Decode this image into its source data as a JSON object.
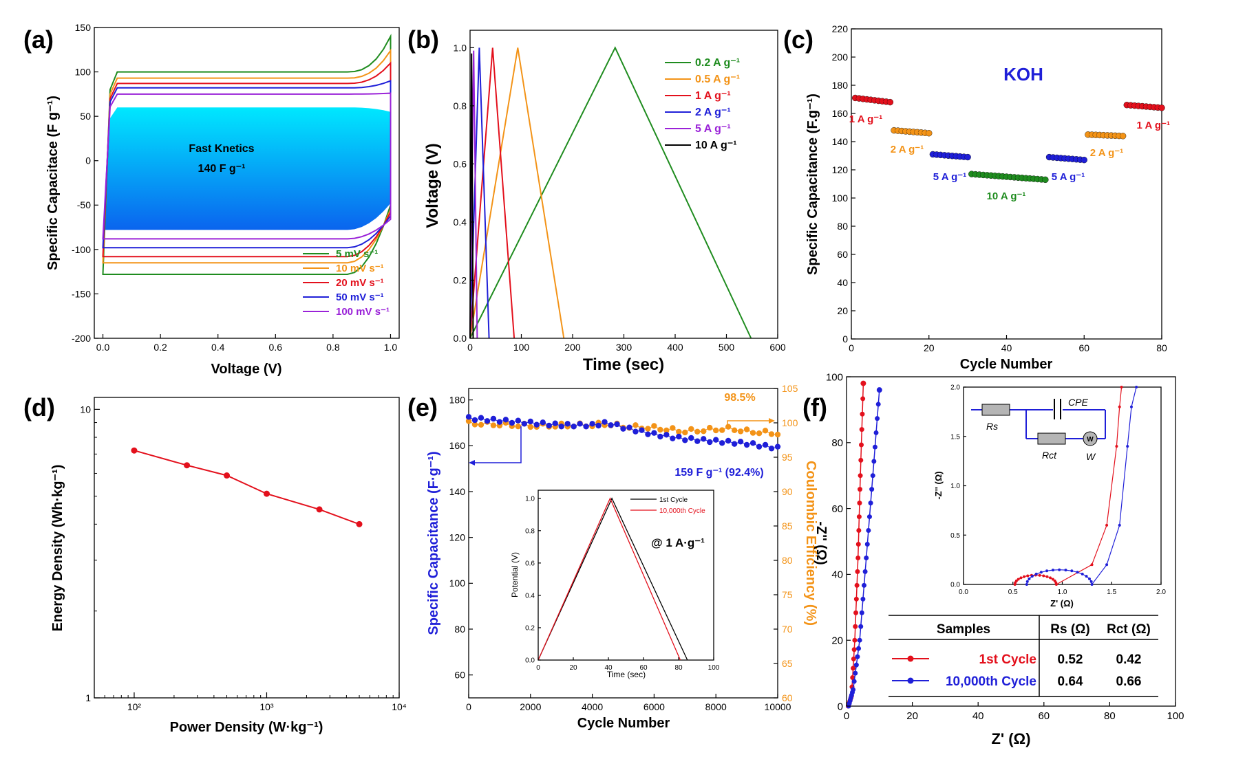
{
  "colors": {
    "green": "#1f8c1f",
    "orange": "#f39317",
    "red": "#e3101c",
    "blue": "#1f1fd8",
    "purple": "#9a22d8",
    "black": "#000000",
    "cyan": "#00e8ff",
    "deepblue": "#0a64ee"
  },
  "chart_data": [
    {
      "id": "a",
      "type": "line",
      "panel_label": "(a)",
      "xlabel": "Voltage (V)",
      "ylabel": "Specific Capacitace (F g⁻¹)",
      "xlim": [
        -0.03,
        1.03
      ],
      "ylim": [
        -200,
        150
      ],
      "xticks": [
        "0.0",
        "0.2",
        "0.4",
        "0.6",
        "0.8",
        "1.0"
      ],
      "yticks": [
        "-200",
        "-150",
        "-100",
        "-50",
        "0",
        "50",
        "100",
        "150"
      ],
      "annotation_lines": [
        "Fast Knetics",
        "140 F g⁻¹"
      ],
      "series": [
        {
          "name": "5 mV s⁻¹",
          "color": "#1f8c1f",
          "top": 100,
          "bottom": -128,
          "right_top": 140,
          "right_bottom": -50
        },
        {
          "name": "10 mV s⁻¹",
          "color": "#f39317",
          "top": 93,
          "bottom": -115,
          "right_top": 124,
          "right_bottom": -55
        },
        {
          "name": "20 mV s⁻¹",
          "color": "#e3101c",
          "top": 87,
          "bottom": -108,
          "right_top": 110,
          "right_bottom": -58
        },
        {
          "name": "50 mV s⁻¹",
          "color": "#1f1fd8",
          "top": 82,
          "bottom": -98,
          "right_top": 90,
          "right_bottom": -62
        },
        {
          "name": "100 mV s⁻¹",
          "color": "#9a22d8",
          "top": 75,
          "bottom": -88,
          "right_top": 76,
          "right_bottom": -66
        }
      ],
      "filled_area": {
        "top": 60,
        "bottom": -78
      }
    },
    {
      "id": "b",
      "type": "line",
      "panel_label": "(b)",
      "xlabel": "Time (sec)",
      "ylabel": "Voltage (V)",
      "xlim": [
        0,
        600
      ],
      "ylim": [
        0,
        1.06
      ],
      "xticks": [
        "0",
        "100",
        "200",
        "300",
        "400",
        "500",
        "600"
      ],
      "yticks": [
        "0.0",
        "0.2",
        "0.4",
        "0.6",
        "0.8",
        "1.0"
      ],
      "series": [
        {
          "name": "0.2 A g⁻¹",
          "color": "#1f8c1f",
          "x": [
            0,
            283,
            548
          ],
          "y": [
            0,
            1.0,
            0
          ]
        },
        {
          "name": "0.5 A g⁻¹",
          "color": "#f39317",
          "x": [
            0,
            93,
            183
          ],
          "y": [
            0,
            1.0,
            0
          ]
        },
        {
          "name": "1 A g⁻¹",
          "color": "#e3101c",
          "x": [
            0,
            44,
            86
          ],
          "y": [
            0,
            1.0,
            0
          ]
        },
        {
          "name": "2 A g⁻¹",
          "color": "#1f1fd8",
          "x": [
            0,
            18,
            37
          ],
          "y": [
            0,
            1.0,
            0
          ]
        },
        {
          "name": "5 A g⁻¹",
          "color": "#9a22d8",
          "x": [
            0,
            7,
            14
          ],
          "y": [
            0,
            0.99,
            0
          ]
        },
        {
          "name": "10 A g⁻¹",
          "color": "#000000",
          "x": [
            0,
            3,
            6
          ],
          "y": [
            0,
            0.98,
            0
          ]
        }
      ]
    },
    {
      "id": "c",
      "type": "scatter",
      "panel_label": "(c)",
      "xlabel": "Cycle Number",
      "ylabel": "Specific Capacitance (F.g⁻¹)",
      "xlim": [
        0,
        80
      ],
      "ylim": [
        0,
        220
      ],
      "xticks": [
        "0",
        "20",
        "40",
        "60",
        "80"
      ],
      "yticks": [
        "0",
        "20",
        "40",
        "60",
        "80",
        "100",
        "120",
        "140",
        "160",
        "180",
        "200",
        "220"
      ],
      "title_text": "KOH",
      "segments": [
        {
          "label": "1 A g⁻¹",
          "color": "#e3101c",
          "x_start": 1,
          "x_end": 10,
          "v_start": 171,
          "v_end": 168
        },
        {
          "label": "2 A g⁻¹",
          "color": "#f39317",
          "x_start": 11,
          "x_end": 20,
          "v_start": 148,
          "v_end": 146
        },
        {
          "label": "5 A g⁻¹",
          "color": "#1f1fd8",
          "x_start": 21,
          "x_end": 30,
          "v_start": 131,
          "v_end": 129
        },
        {
          "label": "10 A g⁻¹",
          "color": "#1f8c1f",
          "x_start": 31,
          "x_end": 50,
          "v_start": 117,
          "v_end": 113
        },
        {
          "label": "5 A g⁻¹",
          "color": "#1f1fd8",
          "x_start": 51,
          "x_end": 60,
          "v_start": 129,
          "v_end": 127
        },
        {
          "label": "2 A g⁻¹",
          "color": "#f39317",
          "x_start": 61,
          "x_end": 70,
          "v_start": 145,
          "v_end": 144
        },
        {
          "label": "1 A g⁻¹",
          "color": "#e3101c",
          "x_start": 71,
          "x_end": 80,
          "v_start": 166,
          "v_end": 164
        }
      ]
    },
    {
      "id": "d",
      "type": "line",
      "panel_label": "(d)",
      "xlabel": "Power Density (W·kg⁻¹)",
      "ylabel": "Energy Density (Wh·kg⁻¹)",
      "xscale": "log",
      "yscale": "log",
      "xlim": [
        50,
        10000
      ],
      "ylim": [
        1,
        11
      ],
      "xticks": [
        "10²",
        "10³",
        "10⁴"
      ],
      "yticks": [
        "1",
        "10"
      ],
      "series": [
        {
          "name": "energy",
          "color": "#e3101c",
          "x": [
            100,
            250,
            500,
            1000,
            2500,
            5000
          ],
          "y": [
            7.2,
            6.4,
            5.9,
            5.1,
            4.5,
            4.0
          ]
        }
      ]
    },
    {
      "id": "e",
      "type": "scatter",
      "panel_label": "(e)",
      "xlabel": "Cycle Number",
      "ylabel": "Specific Capacitance (F·g⁻¹)",
      "ylabel_right": "Coulombic Efficiency (%)",
      "xlim": [
        0,
        10000
      ],
      "ylim": [
        50,
        185
      ],
      "ylim_right": [
        60,
        105
      ],
      "xticks": [
        "0",
        "2000",
        "4000",
        "6000",
        "8000",
        "10000"
      ],
      "yticks": [
        "60",
        "80",
        "100",
        "120",
        "140",
        "160",
        "180"
      ],
      "yticks_right": [
        "60",
        "65",
        "70",
        "75",
        "80",
        "85",
        "90",
        "95",
        "100",
        "105"
      ],
      "annotation_capacitance": "159 F g⁻¹ (92.4%)",
      "annotation_efficiency": "98.5%",
      "capacitance": {
        "x": [
          0,
          1000,
          2000,
          3000,
          4000,
          4500,
          5000,
          6000,
          7000,
          8000,
          9000,
          10000
        ],
        "y": [
          172,
          171,
          170,
          169,
          169,
          170,
          168,
          165,
          163,
          162,
          161,
          159
        ]
      },
      "efficiency": {
        "x": [
          0,
          2000,
          4000,
          4500,
          5000,
          6000,
          7000,
          8000,
          8500,
          9000,
          10000
        ],
        "y": [
          100,
          99.6,
          99.7,
          99.9,
          99.5,
          99.3,
          98.8,
          99.1,
          99.2,
          98.8,
          98.5
        ]
      },
      "inset": {
        "type": "line",
        "xlabel": "Time (sec)",
        "ylabel": "Potential (V)",
        "xlim": [
          0,
          100
        ],
        "ylim": [
          0,
          1.05
        ],
        "xticks": [
          "0",
          "20",
          "40",
          "60",
          "80",
          "100"
        ],
        "yticks": [
          "0.0",
          "0.2",
          "0.4",
          "0.6",
          "0.8",
          "1.0"
        ],
        "annotation": "@ 1 A·g⁻¹",
        "series": [
          {
            "name": "1st Cycle",
            "color": "#000000",
            "x": [
              0,
              42,
              85
            ],
            "y": [
              0,
              1.0,
              0
            ]
          },
          {
            "name": "10,000th Cycle",
            "color": "#e3101c",
            "x": [
              0,
              41,
              81
            ],
            "y": [
              0,
              1.0,
              0
            ]
          }
        ]
      }
    },
    {
      "id": "f",
      "type": "scatter",
      "panel_label": "(f)",
      "xlabel": "Z' (Ω)",
      "ylabel": "-Z'' (Ω)",
      "xlim": [
        0,
        100
      ],
      "ylim": [
        0,
        100
      ],
      "xticks": [
        "0",
        "20",
        "40",
        "60",
        "80",
        "100"
      ],
      "yticks": [
        "0",
        "20",
        "40",
        "60",
        "80",
        "100"
      ],
      "series": [
        {
          "name": "1st Cycle",
          "color": "#e3101c",
          "x": [
            0.5,
            1.5,
            2.5,
            3.5,
            4.2,
            5.1
          ],
          "y": [
            0,
            3,
            20,
            45,
            70,
            98
          ]
        },
        {
          "name": "10,000th Cycle",
          "color": "#1f1fd8",
          "x": [
            0.64,
            2.0,
            4.0,
            6.0,
            8.0,
            10.0
          ],
          "y": [
            0,
            5,
            20,
            45,
            70,
            96
          ]
        }
      ],
      "inset": {
        "xlabel": "Z' (Ω)",
        "ylabel": "-Z'' (Ω)",
        "xlim": [
          0,
          2
        ],
        "ylim": [
          0,
          2
        ],
        "xticks": [
          "0.0",
          "0.5",
          "1.0",
          "1.5",
          "2.0"
        ],
        "yticks": [
          "0.0",
          "0.5",
          "1.0",
          "1.5",
          "2.0"
        ],
        "circuit_labels": {
          "rs": "Rs",
          "rct": "Rct",
          "cpe": "CPE",
          "w": "W"
        }
      },
      "table": {
        "headers": [
          "Samples",
          "Rs (Ω)",
          "Rct (Ω)"
        ],
        "rows": [
          {
            "sample": "1st Cycle",
            "rs": "0.52",
            "rct": "0.42"
          },
          {
            "sample": "10,000th Cycle",
            "rs": "0.64",
            "rct": "0.66"
          }
        ]
      }
    }
  ]
}
